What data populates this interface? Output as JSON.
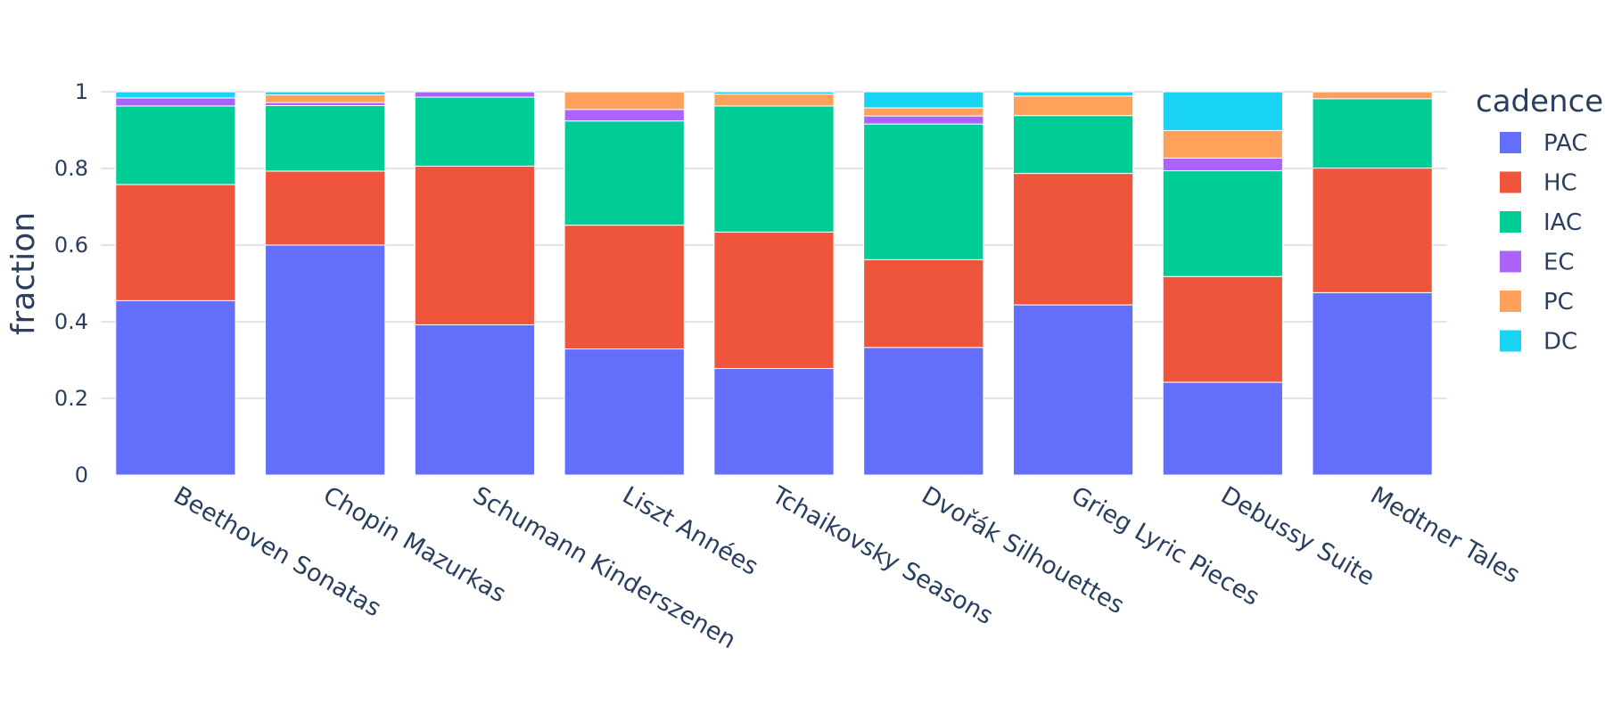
{
  "chart_data": {
    "type": "bar",
    "stacked": true,
    "categories": [
      "Beethoven Sonatas",
      "Chopin Mazurkas",
      "Schumann Kinderszenen",
      "Liszt Années",
      "Tchaikovsky Seasons",
      "Dvořák Silhouettes",
      "Grieg Lyric Pieces",
      "Debussy Suite",
      "Medtner Tales"
    ],
    "series": [
      {
        "name": "PAC",
        "color": "#636efa",
        "values": [
          0.455,
          0.6,
          0.392,
          0.329,
          0.278,
          0.333,
          0.444,
          0.242,
          0.476
        ]
      },
      {
        "name": "HC",
        "color": "#ef553b",
        "values": [
          0.303,
          0.193,
          0.414,
          0.323,
          0.356,
          0.229,
          0.343,
          0.276,
          0.325
        ]
      },
      {
        "name": "IAC",
        "color": "#00cc96",
        "values": [
          0.205,
          0.171,
          0.18,
          0.272,
          0.329,
          0.354,
          0.151,
          0.276,
          0.181
        ]
      },
      {
        "name": "EC",
        "color": "#ab63fa",
        "values": [
          0.021,
          0.008,
          0.014,
          0.03,
          0.0,
          0.021,
          0.0,
          0.033,
          0.0
        ]
      },
      {
        "name": "PC",
        "color": "#ffa15a",
        "values": [
          0.0,
          0.02,
          0.0,
          0.046,
          0.031,
          0.021,
          0.051,
          0.072,
          0.018
        ]
      },
      {
        "name": "DC",
        "color": "#19d3f3",
        "values": [
          0.016,
          0.008,
          0.0,
          0.0,
          0.006,
          0.042,
          0.011,
          0.101,
          0.0
        ]
      }
    ],
    "xlabel": "",
    "ylabel": "fraction",
    "ylim": [
      0,
      1
    ],
    "yticks": [
      0,
      0.2,
      0.4,
      0.6,
      0.8,
      1
    ],
    "ytick_labels": [
      "0",
      "0.2",
      "0.4",
      "0.6",
      "0.8",
      "1"
    ],
    "legend_title": "cadence",
    "legend_position": "right",
    "grid": true
  }
}
